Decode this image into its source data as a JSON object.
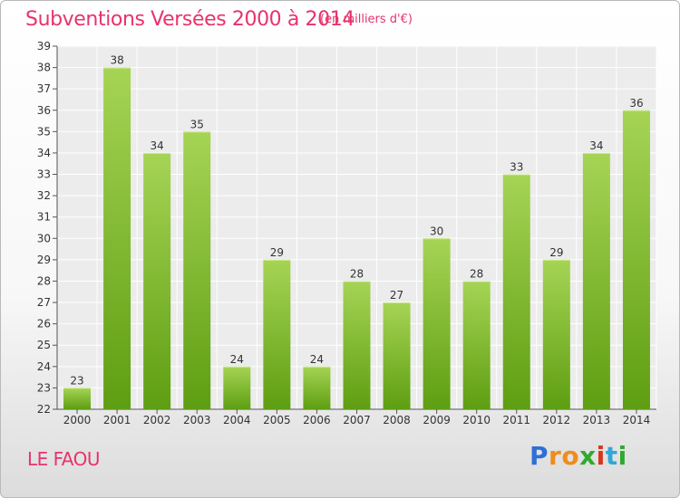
{
  "header": {
    "title": "Subventions Versées 2000 à 2014",
    "subtitle": "(en milliers d'€)"
  },
  "footer": {
    "place": "LE FAOU",
    "logo": "Proxiti"
  },
  "colors": {
    "title": "#e8336c",
    "bar_top": "#a6d455",
    "bar_bottom": "#5e9e12",
    "logo_letters": [
      "#2f6fd6",
      "#f08c1e",
      "#f08c1e",
      "#2faa2f",
      "#d8361e",
      "#2fa8d8",
      "#2faa2f"
    ]
  },
  "chart_data": {
    "type": "bar",
    "categories": [
      "2000",
      "2001",
      "2002",
      "2003",
      "2004",
      "2005",
      "2006",
      "2007",
      "2008",
      "2009",
      "2010",
      "2011",
      "2012",
      "2013",
      "2014"
    ],
    "values": [
      23,
      38,
      34,
      35,
      24,
      29,
      24,
      28,
      27,
      30,
      28,
      33,
      29,
      34,
      36
    ],
    "title": "Subventions Versées 2000 à 2014",
    "xlabel": "",
    "ylabel": "",
    "ylim": [
      22,
      39
    ],
    "yticks": [
      22,
      23,
      24,
      25,
      26,
      27,
      28,
      29,
      30,
      31,
      32,
      33,
      34,
      35,
      36,
      37,
      38,
      39
    ],
    "grid": true,
    "data_labels": true
  }
}
